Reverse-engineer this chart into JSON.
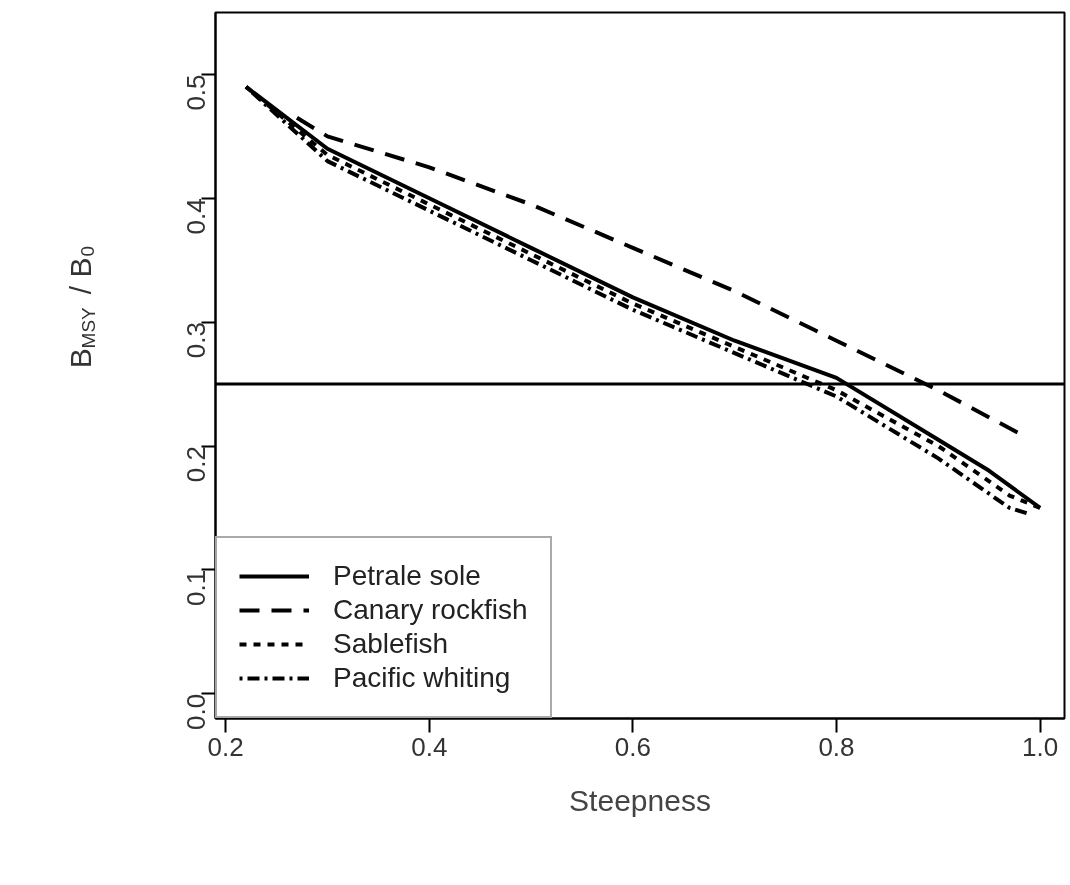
{
  "chart_data": {
    "type": "line",
    "xlabel": "Steepness",
    "ylabel": "B$_{MSY}$ / B₀",
    "xlim": [
      0.19,
      1.024
    ],
    "ylim": [
      -0.02,
      0.55
    ],
    "xticks": [
      0.2,
      0.4,
      0.6,
      0.8,
      {
        "value": 1,
        "label": "1.0"
      }
    ],
    "yticks": [
      {
        "value": 0,
        "label": "0.0"
      },
      0.1,
      0.2,
      0.3,
      0.4,
      0.5
    ],
    "series": [
      {
        "name": "Petrale sole",
        "color": "#000000",
        "line_style": "solid",
        "x": [
          0.22,
          0.3,
          0.4,
          0.5,
          0.6,
          0.7,
          0.8,
          0.9,
          0.95,
          1.0
        ],
        "values": [
          0.49,
          0.44,
          0.4,
          0.36,
          0.32,
          0.285,
          0.255,
          0.205,
          0.18,
          0.15
        ]
      },
      {
        "name": "Canary rockfish",
        "color": "#000000",
        "line_style": "dashed",
        "x": [
          0.27,
          0.3,
          0.4,
          0.5,
          0.6,
          0.7,
          0.8,
          0.9,
          0.98
        ],
        "values": [
          0.465,
          0.45,
          0.425,
          0.395,
          0.36,
          0.325,
          0.285,
          0.245,
          0.21
        ]
      },
      {
        "name": "Sablefish",
        "color": "#000000",
        "line_style": "dotted",
        "x": [
          0.22,
          0.3,
          0.4,
          0.5,
          0.6,
          0.7,
          0.8,
          0.9,
          0.97,
          1.0
        ],
        "values": [
          0.49,
          0.435,
          0.395,
          0.355,
          0.315,
          0.28,
          0.245,
          0.2,
          0.16,
          0.15
        ]
      },
      {
        "name": "Pacific whiting",
        "color": "#000000",
        "line_style": "dashdot",
        "x": [
          0.22,
          0.3,
          0.4,
          0.5,
          0.6,
          0.7,
          0.8,
          0.9,
          0.97,
          0.99
        ],
        "values": [
          0.49,
          0.43,
          0.39,
          0.35,
          0.31,
          0.275,
          0.24,
          0.19,
          0.15,
          0.145
        ]
      }
    ],
    "ref_lines": [
      {
        "axis": "y",
        "value": 0.25,
        "label": null,
        "color": "#000000"
      }
    ],
    "legend": "bottom left",
    "grid": false,
    "marker": "none"
  }
}
